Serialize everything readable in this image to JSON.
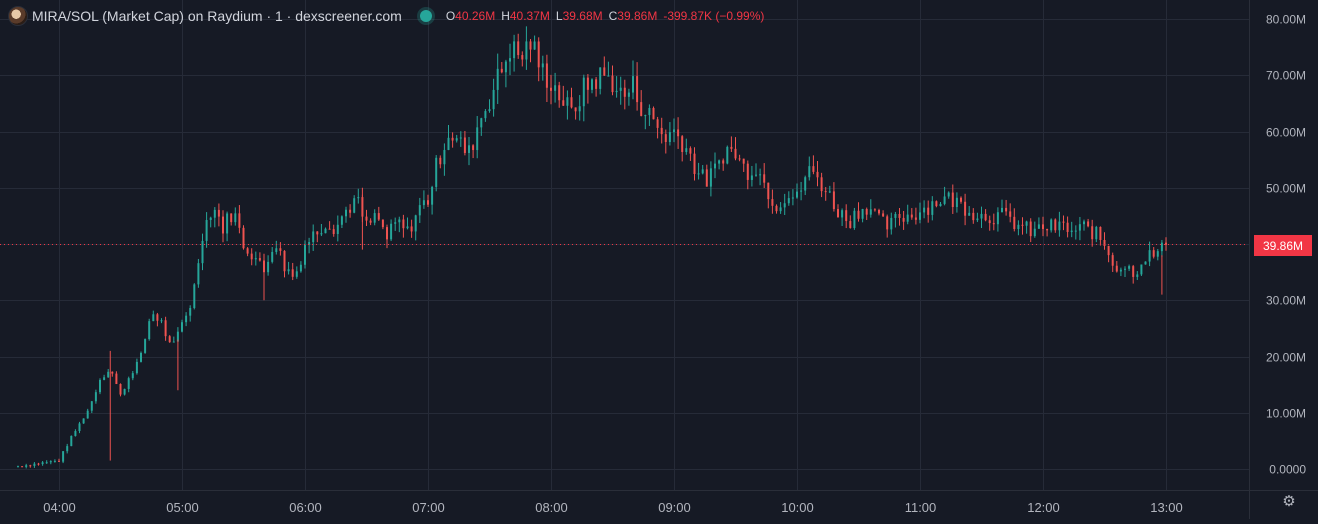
{
  "header": {
    "title": "MIRA/SOL (Market Cap) on Raydium · 1 · dexscreener.com",
    "ohlc": {
      "open_label": "O",
      "open": "40.26M",
      "high_label": "H",
      "high": "40.37M",
      "low_label": "L",
      "low": "39.68M",
      "close_label": "C",
      "close": "39.86M",
      "change": "-399.87K (−0.99%)"
    }
  },
  "colors": {
    "up": "#26a69a",
    "down": "#ef5350",
    "background": "#161a25",
    "grid": "#262b38",
    "last_price": "#f23645"
  },
  "icons": {
    "settings": "settings-icon"
  },
  "chart_data": {
    "type": "candlestick",
    "x_tick_labels": [
      "04:00",
      "05:00",
      "06:00",
      "07:00",
      "08:00",
      "09:00",
      "10:00",
      "11:00",
      "12:00",
      "13:00"
    ],
    "y_tick_labels": [
      "80.00M",
      "70.00M",
      "60.00M",
      "50.00M",
      "40.00M",
      "30.00M",
      "20.00M",
      "10.00M",
      "0.0000"
    ],
    "ylim": [
      0,
      80
    ],
    "y_unit": "M",
    "last_price_label": "39.86M",
    "last_price": 39.86,
    "grid": true,
    "interval_minutes": 1,
    "series": [
      {
        "time": "03:40",
        "close": 0.5
      },
      {
        "time": "03:50",
        "close": 1
      },
      {
        "time": "04:00",
        "close": 1.5
      },
      {
        "time": "04:05",
        "close": 5
      },
      {
        "time": "04:10",
        "close": 8
      },
      {
        "time": "04:15",
        "close": 11
      },
      {
        "time": "04:20",
        "close": 16
      },
      {
        "time": "04:25",
        "close": 18
      },
      {
        "time": "04:30",
        "close": 13
      },
      {
        "time": "04:35",
        "close": 17
      },
      {
        "time": "04:40",
        "close": 20
      },
      {
        "time": "04:45",
        "close": 28
      },
      {
        "time": "04:50",
        "close": 26
      },
      {
        "time": "04:55",
        "close": 21
      },
      {
        "time": "05:00",
        "close": 26
      },
      {
        "time": "05:05",
        "close": 30
      },
      {
        "time": "05:10",
        "close": 42
      },
      {
        "time": "05:15",
        "close": 47
      },
      {
        "time": "05:20",
        "close": 43
      },
      {
        "time": "05:25",
        "close": 46
      },
      {
        "time": "05:30",
        "close": 40
      },
      {
        "time": "05:35",
        "close": 38
      },
      {
        "time": "05:40",
        "close": 35
      },
      {
        "time": "05:45",
        "close": 41
      },
      {
        "time": "05:50",
        "close": 36
      },
      {
        "time": "05:55",
        "close": 34
      },
      {
        "time": "06:00",
        "close": 40
      },
      {
        "time": "06:05",
        "close": 42
      },
      {
        "time": "06:10",
        "close": 44
      },
      {
        "time": "06:15",
        "close": 43
      },
      {
        "time": "06:20",
        "close": 46
      },
      {
        "time": "06:25",
        "close": 48
      },
      {
        "time": "06:30",
        "close": 43
      },
      {
        "time": "06:35",
        "close": 45
      },
      {
        "time": "06:40",
        "close": 41
      },
      {
        "time": "06:45",
        "close": 44
      },
      {
        "time": "06:50",
        "close": 42
      },
      {
        "time": "06:55",
        "close": 46
      },
      {
        "time": "07:00",
        "close": 48
      },
      {
        "time": "07:05",
        "close": 55
      },
      {
        "time": "07:10",
        "close": 60
      },
      {
        "time": "07:15",
        "close": 58
      },
      {
        "time": "07:20",
        "close": 56
      },
      {
        "time": "07:25",
        "close": 62
      },
      {
        "time": "07:30",
        "close": 66
      },
      {
        "time": "07:35",
        "close": 70
      },
      {
        "time": "07:40",
        "close": 75
      },
      {
        "time": "07:45",
        "close": 73
      },
      {
        "time": "07:50",
        "close": 76
      },
      {
        "time": "07:55",
        "close": 71
      },
      {
        "time": "08:00",
        "close": 69
      },
      {
        "time": "08:05",
        "close": 66
      },
      {
        "time": "08:10",
        "close": 63
      },
      {
        "time": "08:15",
        "close": 67
      },
      {
        "time": "08:20",
        "close": 69
      },
      {
        "time": "08:25",
        "close": 70
      },
      {
        "time": "08:30",
        "close": 69
      },
      {
        "time": "08:35",
        "close": 66
      },
      {
        "time": "08:40",
        "close": 68
      },
      {
        "time": "08:45",
        "close": 64
      },
      {
        "time": "08:50",
        "close": 62
      },
      {
        "time": "08:55",
        "close": 59
      },
      {
        "time": "09:00",
        "close": 60
      },
      {
        "time": "09:05",
        "close": 58
      },
      {
        "time": "09:10",
        "close": 54
      },
      {
        "time": "09:15",
        "close": 51
      },
      {
        "time": "09:20",
        "close": 53
      },
      {
        "time": "09:25",
        "close": 57
      },
      {
        "time": "09:30",
        "close": 56
      },
      {
        "time": "09:35",
        "close": 53
      },
      {
        "time": "09:40",
        "close": 54
      },
      {
        "time": "09:45",
        "close": 50
      },
      {
        "time": "09:50",
        "close": 47
      },
      {
        "time": "09:55",
        "close": 49
      },
      {
        "time": "10:00",
        "close": 48
      },
      {
        "time": "10:05",
        "close": 53
      },
      {
        "time": "10:10",
        "close": 52
      },
      {
        "time": "10:15",
        "close": 49
      },
      {
        "time": "10:20",
        "close": 46
      },
      {
        "time": "10:25",
        "close": 44
      },
      {
        "time": "10:30",
        "close": 46
      },
      {
        "time": "10:35",
        "close": 47
      },
      {
        "time": "10:40",
        "close": 44
      },
      {
        "time": "10:45",
        "close": 43
      },
      {
        "time": "10:50",
        "close": 45
      },
      {
        "time": "10:55",
        "close": 45
      },
      {
        "time": "11:00",
        "close": 46
      },
      {
        "time": "11:05",
        "close": 47
      },
      {
        "time": "11:10",
        "close": 48
      },
      {
        "time": "11:15",
        "close": 48
      },
      {
        "time": "11:20",
        "close": 47
      },
      {
        "time": "11:25",
        "close": 46
      },
      {
        "time": "11:30",
        "close": 45
      },
      {
        "time": "11:35",
        "close": 45
      },
      {
        "time": "11:40",
        "close": 45
      },
      {
        "time": "11:45",
        "close": 44
      },
      {
        "time": "11:50",
        "close": 43
      },
      {
        "time": "11:55",
        "close": 42
      },
      {
        "time": "12:00",
        "close": 43
      },
      {
        "time": "12:05",
        "close": 43
      },
      {
        "time": "12:10",
        "close": 43
      },
      {
        "time": "12:15",
        "close": 42
      },
      {
        "time": "12:20",
        "close": 43
      },
      {
        "time": "12:25",
        "close": 42
      },
      {
        "time": "12:30",
        "close": 40
      },
      {
        "time": "12:35",
        "close": 36
      },
      {
        "time": "12:40",
        "close": 36
      },
      {
        "time": "12:45",
        "close": 35
      },
      {
        "time": "12:50",
        "close": 38
      },
      {
        "time": "12:55",
        "close": 38
      },
      {
        "time": "13:00",
        "close": 39.86
      }
    ]
  }
}
